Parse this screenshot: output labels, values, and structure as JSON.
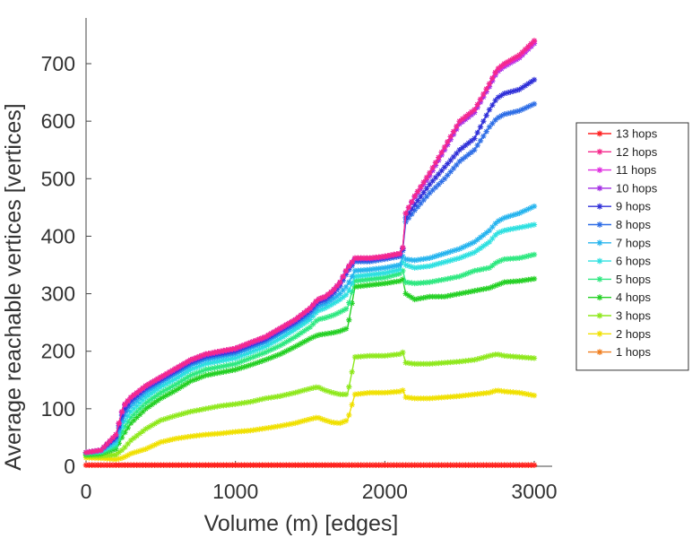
{
  "chart_data": {
    "type": "line",
    "title": "",
    "xlabel": "Volume (m) [edges]",
    "ylabel": "Average reachable vertices [vertices]",
    "xlim": [
      0,
      3000
    ],
    "ylim": [
      0,
      750
    ],
    "xticks": [
      0,
      1000,
      2000,
      3000
    ],
    "yticks": [
      0,
      100,
      200,
      300,
      400,
      500,
      600,
      700
    ],
    "x": [
      0,
      100,
      200,
      250,
      300,
      400,
      500,
      600,
      700,
      800,
      900,
      1000,
      1100,
      1200,
      1300,
      1400,
      1500,
      1550,
      1600,
      1650,
      1700,
      1750,
      1800,
      1900,
      2000,
      2100,
      2120,
      2140,
      2200,
      2300,
      2400,
      2500,
      2600,
      2700,
      2750,
      2800,
      2900,
      3000
    ],
    "legend_position": "right",
    "series": [
      {
        "name": "13 hops",
        "color": "#ff2020",
        "values": [
          2,
          2,
          2,
          2,
          2,
          2,
          2,
          2,
          2,
          2,
          2,
          2,
          2,
          2,
          2,
          2,
          2,
          2,
          2,
          2,
          2,
          2,
          2,
          2,
          2,
          2,
          2,
          2,
          2,
          2,
          2,
          2,
          2,
          2,
          2,
          2,
          2,
          2
        ]
      },
      {
        "name": "12 hops",
        "color": "#f5288c",
        "values": [
          24,
          28,
          55,
          105,
          120,
          140,
          155,
          170,
          185,
          195,
          200,
          205,
          215,
          225,
          240,
          255,
          275,
          290,
          295,
          305,
          320,
          345,
          362,
          362,
          365,
          370,
          380,
          440,
          470,
          510,
          555,
          600,
          620,
          665,
          690,
          700,
          715,
          740
        ]
      },
      {
        "name": "11 hops",
        "color": "#e02ee0",
        "values": [
          24,
          28,
          55,
          105,
          120,
          140,
          155,
          170,
          185,
          195,
          200,
          205,
          215,
          225,
          240,
          255,
          275,
          290,
          295,
          305,
          320,
          345,
          362,
          362,
          365,
          370,
          380,
          440,
          470,
          510,
          555,
          600,
          620,
          665,
          688,
          698,
          712,
          738
        ]
      },
      {
        "name": "10 hops",
        "color": "#a42ee4",
        "values": [
          24,
          28,
          55,
          103,
          119,
          139,
          154,
          169,
          184,
          194,
          199,
          204,
          214,
          224,
          239,
          254,
          274,
          289,
          294,
          304,
          319,
          344,
          361,
          361,
          364,
          369,
          380,
          440,
          468,
          505,
          550,
          595,
          615,
          660,
          685,
          695,
          710,
          735
        ]
      },
      {
        "name": "9 hops",
        "color": "#3030d8",
        "values": [
          24,
          28,
          52,
          98,
          116,
          137,
          152,
          167,
          182,
          192,
          197,
          202,
          212,
          222,
          237,
          252,
          272,
          287,
          292,
          302,
          317,
          342,
          360,
          360,
          363,
          368,
          378,
          432,
          455,
          490,
          520,
          550,
          570,
          620,
          640,
          648,
          655,
          672
        ]
      },
      {
        "name": "8 hops",
        "color": "#2e6ee6",
        "values": [
          24,
          28,
          50,
          92,
          112,
          134,
          149,
          164,
          179,
          189,
          194,
          199,
          209,
          219,
          234,
          249,
          268,
          283,
          288,
          298,
          313,
          338,
          356,
          356,
          360,
          365,
          375,
          425,
          445,
          475,
          500,
          530,
          550,
          590,
          605,
          612,
          618,
          630
        ]
      },
      {
        "name": "7 hops",
        "color": "#26b4ee",
        "values": [
          24,
          27,
          45,
          85,
          105,
          128,
          145,
          160,
          175,
          185,
          190,
          195,
          205,
          215,
          230,
          245,
          262,
          277,
          282,
          290,
          300,
          315,
          340,
          342,
          345,
          350,
          365,
          360,
          358,
          362,
          370,
          378,
          390,
          410,
          425,
          432,
          440,
          452
        ]
      },
      {
        "name": "6 hops",
        "color": "#2ee0e0",
        "values": [
          24,
          26,
          40,
          75,
          95,
          120,
          138,
          152,
          168,
          178,
          183,
          188,
          198,
          208,
          222,
          238,
          255,
          270,
          275,
          282,
          290,
          300,
          330,
          333,
          336,
          342,
          355,
          350,
          345,
          348,
          355,
          362,
          372,
          390,
          405,
          410,
          415,
          420
        ]
      },
      {
        "name": "5 hops",
        "color": "#2ee880",
        "values": [
          22,
          24,
          35,
          65,
          85,
          110,
          128,
          142,
          158,
          168,
          173,
          178,
          188,
          198,
          210,
          225,
          242,
          255,
          258,
          262,
          268,
          275,
          322,
          325,
          328,
          335,
          340,
          320,
          318,
          320,
          325,
          330,
          340,
          345,
          355,
          360,
          362,
          368
        ]
      },
      {
        "name": "4 hops",
        "color": "#24d024",
        "values": [
          20,
          22,
          30,
          55,
          75,
          100,
          118,
          132,
          148,
          158,
          163,
          168,
          176,
          185,
          195,
          208,
          222,
          228,
          230,
          232,
          235,
          240,
          312,
          315,
          318,
          322,
          325,
          300,
          290,
          295,
          295,
          300,
          305,
          310,
          315,
          320,
          322,
          326
        ]
      },
      {
        "name": "3 hops",
        "color": "#8ee81c",
        "values": [
          18,
          18,
          20,
          30,
          45,
          65,
          80,
          88,
          95,
          100,
          105,
          108,
          112,
          118,
          122,
          128,
          135,
          138,
          132,
          128,
          125,
          125,
          190,
          192,
          192,
          195,
          198,
          180,
          178,
          178,
          180,
          182,
          185,
          192,
          195,
          192,
          190,
          188
        ]
      },
      {
        "name": "2 hops",
        "color": "#f0e000",
        "values": [
          15,
          14,
          12,
          15,
          22,
          30,
          42,
          48,
          52,
          55,
          57,
          60,
          62,
          66,
          70,
          75,
          82,
          85,
          80,
          76,
          75,
          80,
          125,
          128,
          128,
          130,
          132,
          120,
          118,
          118,
          120,
          122,
          125,
          128,
          132,
          130,
          128,
          123
        ]
      },
      {
        "name": "1 hops",
        "color": "#f07e1e",
        "values": [
          2,
          2,
          2,
          2,
          2,
          2,
          2,
          2,
          2,
          2,
          2,
          2,
          2,
          2,
          2,
          2,
          2,
          2,
          2,
          2,
          2,
          2,
          2,
          2,
          2,
          2,
          2,
          2,
          2,
          2,
          2,
          2,
          2,
          2,
          2,
          2,
          2,
          2
        ]
      }
    ]
  }
}
